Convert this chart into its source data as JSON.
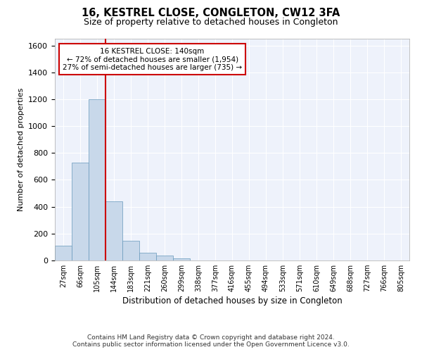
{
  "title": "16, KESTREL CLOSE, CONGLETON, CW12 3FA",
  "subtitle": "Size of property relative to detached houses in Congleton",
  "xlabel": "Distribution of detached houses by size in Congleton",
  "ylabel": "Number of detached properties",
  "bar_color": "#c8d8ea",
  "bar_edge_color": "#6699bb",
  "background_color": "#ffffff",
  "plot_bg_color": "#eef2fb",
  "grid_color": "#ffffff",
  "categories": [
    "27sqm",
    "66sqm",
    "105sqm",
    "144sqm",
    "183sqm",
    "221sqm",
    "260sqm",
    "299sqm",
    "338sqm",
    "377sqm",
    "416sqm",
    "455sqm",
    "494sqm",
    "533sqm",
    "571sqm",
    "610sqm",
    "649sqm",
    "688sqm",
    "727sqm",
    "766sqm",
    "805sqm"
  ],
  "values": [
    110,
    730,
    1200,
    440,
    145,
    60,
    35,
    15,
    0,
    0,
    0,
    0,
    0,
    0,
    0,
    0,
    0,
    0,
    0,
    0,
    0
  ],
  "ylim": [
    0,
    1650
  ],
  "yticks": [
    0,
    200,
    400,
    600,
    800,
    1000,
    1200,
    1400,
    1600
  ],
  "vline_pos": 2.5,
  "vline_color": "#cc0000",
  "property_label": "16 KESTREL CLOSE: 140sqm",
  "pct_smaller": "72% of detached houses are smaller (1,954)",
  "pct_larger": "27% of semi-detached houses are larger (735)",
  "annotation_box_color": "#ffffff",
  "annotation_border_color": "#cc0000",
  "footer_line1": "Contains HM Land Registry data © Crown copyright and database right 2024.",
  "footer_line2": "Contains public sector information licensed under the Open Government Licence v3.0."
}
